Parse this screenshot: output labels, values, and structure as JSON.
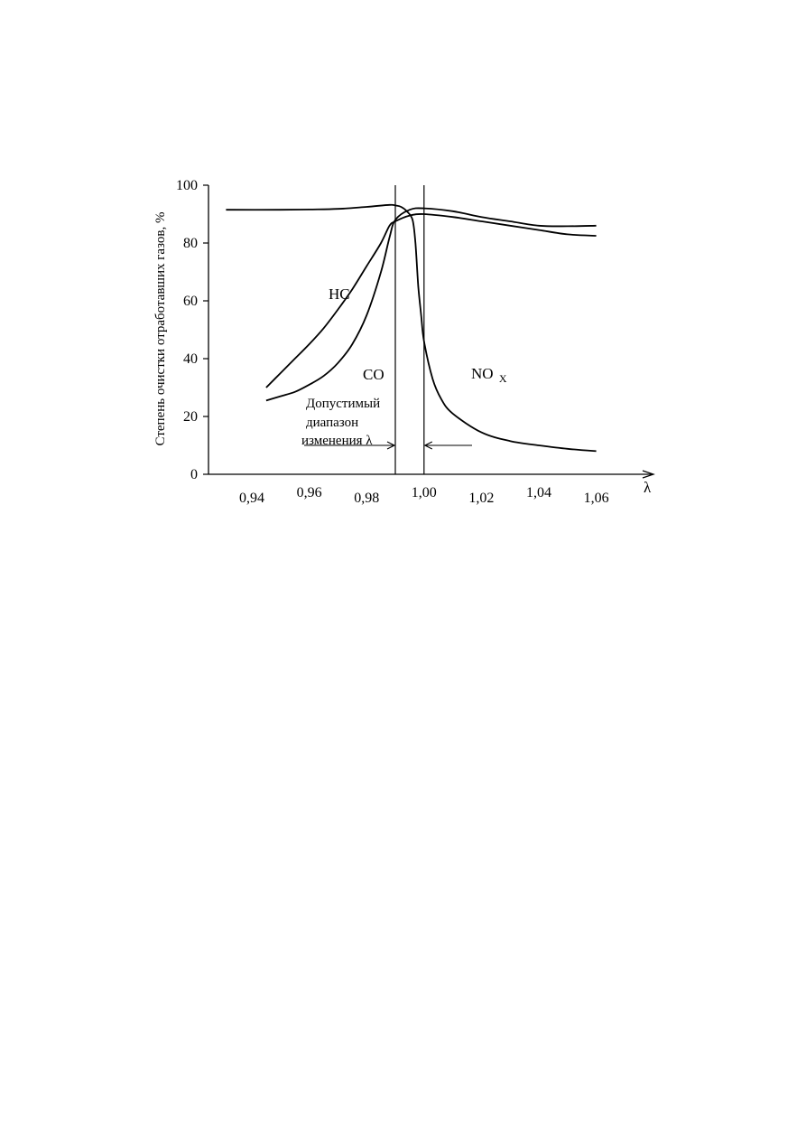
{
  "chart_data": {
    "type": "line",
    "title": "",
    "xlabel": "λ",
    "ylabel": "Степень очистки отработавших газов, %",
    "xlim": [
      0.93,
      1.07
    ],
    "ylim": [
      0,
      100
    ],
    "grid": false,
    "x_ticks": [
      {
        "value": 0.94,
        "label": "0,94"
      },
      {
        "value": 0.96,
        "label": "0,96"
      },
      {
        "value": 0.98,
        "label": "0,98"
      },
      {
        "value": 1.0,
        "label": "1,00"
      },
      {
        "value": 1.02,
        "label": "1,02"
      },
      {
        "value": 1.04,
        "label": "1,04"
      },
      {
        "value": 1.06,
        "label": "1,06"
      }
    ],
    "y_ticks": [
      {
        "value": 0,
        "label": "0"
      },
      {
        "value": 20,
        "label": "20"
      },
      {
        "value": 40,
        "label": "40"
      },
      {
        "value": 60,
        "label": "60"
      },
      {
        "value": 80,
        "label": "80"
      },
      {
        "value": 100,
        "label": "100"
      }
    ],
    "series": [
      {
        "name": "NOx",
        "x": [
          0.931,
          0.95,
          0.96,
          0.97,
          0.98,
          0.988,
          0.99,
          0.992,
          0.994,
          0.996,
          0.997,
          0.998,
          0.999,
          1.0,
          1.003,
          1.006,
          1.01,
          1.02,
          1.03,
          1.04,
          1.05,
          1.06
        ],
        "y": [
          91.5,
          91.5,
          91.6,
          91.8,
          92.5,
          93.2,
          93.0,
          92.5,
          91.0,
          88.0,
          80.0,
          65.0,
          55.0,
          46.0,
          33.0,
          26.0,
          21.0,
          14.5,
          11.5,
          10.0,
          8.8,
          8.0
        ]
      },
      {
        "name": "HC",
        "x": [
          0.945,
          0.95,
          0.955,
          0.96,
          0.965,
          0.97,
          0.975,
          0.98,
          0.985,
          0.988,
          0.99,
          0.995,
          1.0,
          1.01,
          1.02,
          1.03,
          1.04,
          1.05,
          1.06
        ],
        "y": [
          30.0,
          35.0,
          40.0,
          45.0,
          50.5,
          57.0,
          64.0,
          72.0,
          80.0,
          86.0,
          87.5,
          89.5,
          90.0,
          89.0,
          87.5,
          86.0,
          84.5,
          83.0,
          82.5
        ]
      },
      {
        "name": "CO",
        "x": [
          0.945,
          0.95,
          0.955,
          0.96,
          0.965,
          0.97,
          0.975,
          0.98,
          0.985,
          0.988,
          0.99,
          0.995,
          1.0,
          1.01,
          1.02,
          1.03,
          1.04,
          1.05,
          1.06
        ],
        "y": [
          25.5,
          27.0,
          28.5,
          31.0,
          34.0,
          38.5,
          45.0,
          55.0,
          70.0,
          82.0,
          88.0,
          91.5,
          92.0,
          91.0,
          89.0,
          87.5,
          86.0,
          85.8,
          86.0
        ]
      }
    ],
    "labels": {
      "hc": "HC",
      "co": "CO",
      "nox_main": "NO",
      "nox_sub": "X"
    },
    "vertical_lines": [
      0.99,
      1.0
    ],
    "range_annotation": {
      "lines": [
        "Допустимый",
        "диапазон",
        "изменения λ"
      ],
      "from": 0.99,
      "to": 1.0
    }
  }
}
